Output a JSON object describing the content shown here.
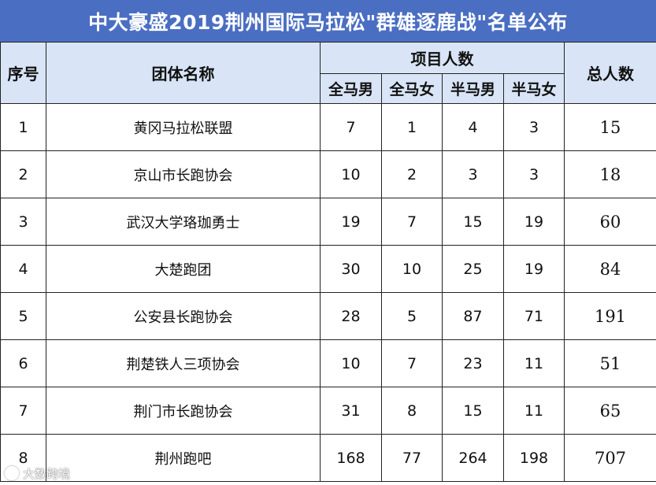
{
  "title": "中大豪盛2019荆州国际马拉松\"群雄逐鹿战\"名单公布",
  "headers": {
    "index": "序号",
    "team": "团体名称",
    "events_group": "项目人数",
    "full_male": "全马男",
    "full_female": "全马女",
    "half_male": "半马男",
    "half_female": "半马女",
    "total": "总人数"
  },
  "rows": [
    {
      "index": "1",
      "team": "黄冈马拉松联盟",
      "full_male": "7",
      "full_female": "1",
      "half_male": "4",
      "half_female": "3",
      "total": "15"
    },
    {
      "index": "2",
      "team": "京山市长跑协会",
      "full_male": "10",
      "full_female": "2",
      "half_male": "3",
      "half_female": "3",
      "total": "18"
    },
    {
      "index": "3",
      "team": "武汉大学珞珈勇士",
      "full_male": "19",
      "full_female": "7",
      "half_male": "15",
      "half_female": "19",
      "total": "60"
    },
    {
      "index": "4",
      "team": "大楚跑团",
      "full_male": "30",
      "full_female": "10",
      "half_male": "25",
      "half_female": "19",
      "total": "84"
    },
    {
      "index": "5",
      "team": "公安县长跑协会",
      "full_male": "28",
      "full_female": "5",
      "half_male": "87",
      "half_female": "71",
      "total": "191"
    },
    {
      "index": "6",
      "team": "荆楚铁人三项协会",
      "full_male": "10",
      "full_female": "7",
      "half_male": "23",
      "half_female": "11",
      "total": "51"
    },
    {
      "index": "7",
      "team": "荆门市长跑协会",
      "full_male": "31",
      "full_female": "8",
      "half_male": "15",
      "half_female": "11",
      "total": "65"
    },
    {
      "index": "8",
      "team": "荆州跑吧",
      "full_male": "168",
      "full_female": "77",
      "half_male": "264",
      "half_female": "198",
      "total": "707"
    }
  ],
  "watermark": "大数跨境",
  "colors": {
    "title_bg": "#4a6ec2",
    "header_bg": "#d9e5f6",
    "border": "#222222"
  }
}
